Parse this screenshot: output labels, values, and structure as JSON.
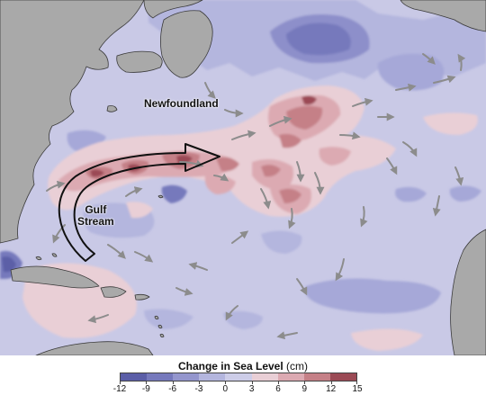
{
  "map": {
    "labels": {
      "newfoundland": "Newfoundland",
      "gulf_stream_line1": "Gulf",
      "gulf_stream_line2": "Stream"
    }
  },
  "colors": {
    "ocean_base": "#c9c9e6",
    "land": "#a9a9a9",
    "coastline": "#3a3a3a",
    "arrow": "#8c8c8c"
  },
  "legend": {
    "title_bold": "Change in Sea Level",
    "title_unit": " (cm)",
    "tick_labels": [
      "-12",
      "-9",
      "-6",
      "-3",
      "0",
      "3",
      "6",
      "9",
      "12",
      "15"
    ],
    "bin_colors": [
      "#5b5ea7",
      "#7679bc",
      "#9496cd",
      "#b4b6de",
      "#cdcde8",
      "#e9cfd6",
      "#dcaab2",
      "#c58087",
      "#9b4a55"
    ]
  }
}
